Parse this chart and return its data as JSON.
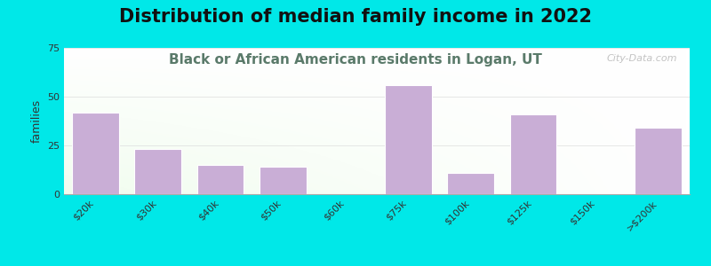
{
  "title": "Distribution of median family income in 2022",
  "subtitle": "Black or African American residents in Logan, UT",
  "categories": [
    "$20k",
    "$30k",
    "$40k",
    "$50k",
    "$60k",
    "$75k",
    "$100k",
    "$125k",
    "$150k",
    ">$200k"
  ],
  "values": [
    42,
    23,
    15,
    14,
    0,
    56,
    11,
    41,
    0,
    34
  ],
  "bar_color": "#c9aed6",
  "ylabel": "families",
  "ylim": [
    0,
    75
  ],
  "yticks": [
    0,
    25,
    50,
    75
  ],
  "background_outer": "#00e8e8",
  "title_fontsize": 15,
  "title_color": "#111111",
  "subtitle_fontsize": 11,
  "subtitle_color": "#5a7a6a",
  "ylabel_fontsize": 9,
  "tick_label_fontsize": 8,
  "watermark": "City-Data.com"
}
